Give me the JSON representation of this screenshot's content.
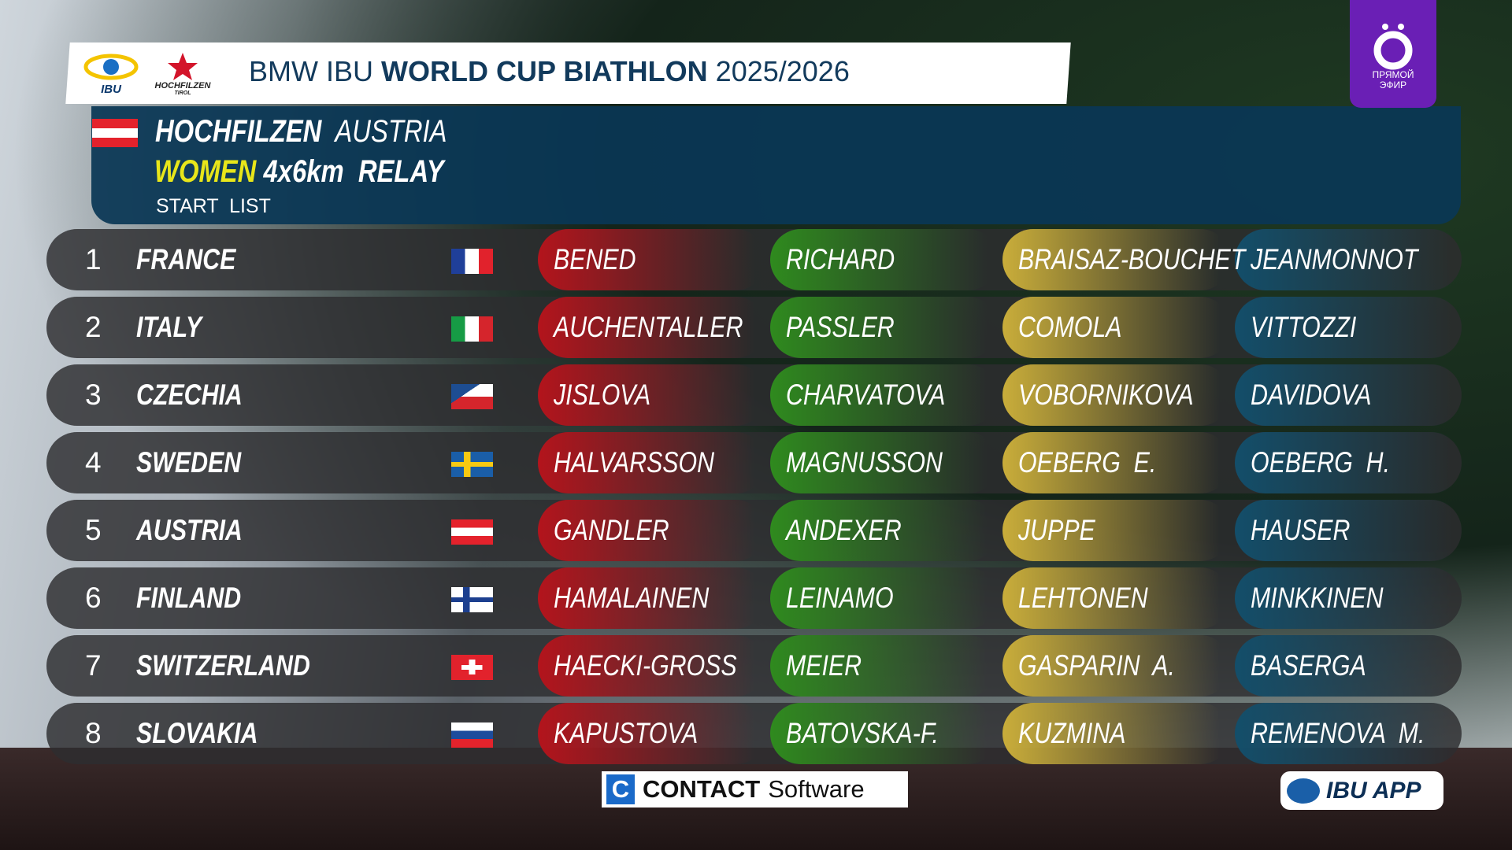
{
  "header": {
    "title_prefix": "BMW IBU",
    "title_bold": "WORLD CUP BIATHLON",
    "title_season": "2025/2026",
    "logos": [
      "IBU",
      "HOCHFILZEN",
      "TIROL"
    ]
  },
  "event": {
    "venue": "HOCHFILZEN",
    "country": "AUSTRIA",
    "gender": "WOMEN",
    "distance": "4x6km",
    "format": "RELAY",
    "list_type": "START  LIST"
  },
  "rows": [
    {
      "rank": 1,
      "team": "FRANCE",
      "legs": [
        "BENED",
        "RICHARD",
        "BRAISAZ-BOUCHET",
        "JEANMONNOT"
      ]
    },
    {
      "rank": 2,
      "team": "ITALY",
      "legs": [
        "AUCHENTALLER",
        "PASSLER",
        "COMOLA",
        "VITTOZZI"
      ]
    },
    {
      "rank": 3,
      "team": "CZECHIA",
      "legs": [
        "JISLOVA",
        "CHARVATOVA",
        "VOBORNIKOVA",
        "DAVIDOVA"
      ]
    },
    {
      "rank": 4,
      "team": "SWEDEN",
      "legs": [
        "HALVARSSON",
        "MAGNUSSON",
        "OEBERG  E.",
        "OEBERG  H."
      ]
    },
    {
      "rank": 5,
      "team": "AUSTRIA",
      "legs": [
        "GANDLER",
        "ANDEXER",
        "JUPPE",
        "HAUSER"
      ]
    },
    {
      "rank": 6,
      "team": "FINLAND",
      "legs": [
        "HAMALAINEN",
        "LEINAMO",
        "LEHTONEN",
        "MINKKINEN"
      ]
    },
    {
      "rank": 7,
      "team": "SWITZERLAND",
      "legs": [
        "HAECKI-GROSS",
        "MEIER",
        "GASPARIN  A.",
        "BASERGA"
      ]
    },
    {
      "rank": 8,
      "team": "SLOVAKIA",
      "legs": [
        "KAPUSTOVA",
        "BATOVSKA-F.",
        "KUZMINA",
        "REMENOVA  M."
      ]
    }
  ],
  "sponsors": {
    "contact_bold": "CONTACT",
    "contact_rest": "Software",
    "app": "IBU APP"
  },
  "channel": {
    "label": "ПРЯМОЙ ЭФИР"
  }
}
